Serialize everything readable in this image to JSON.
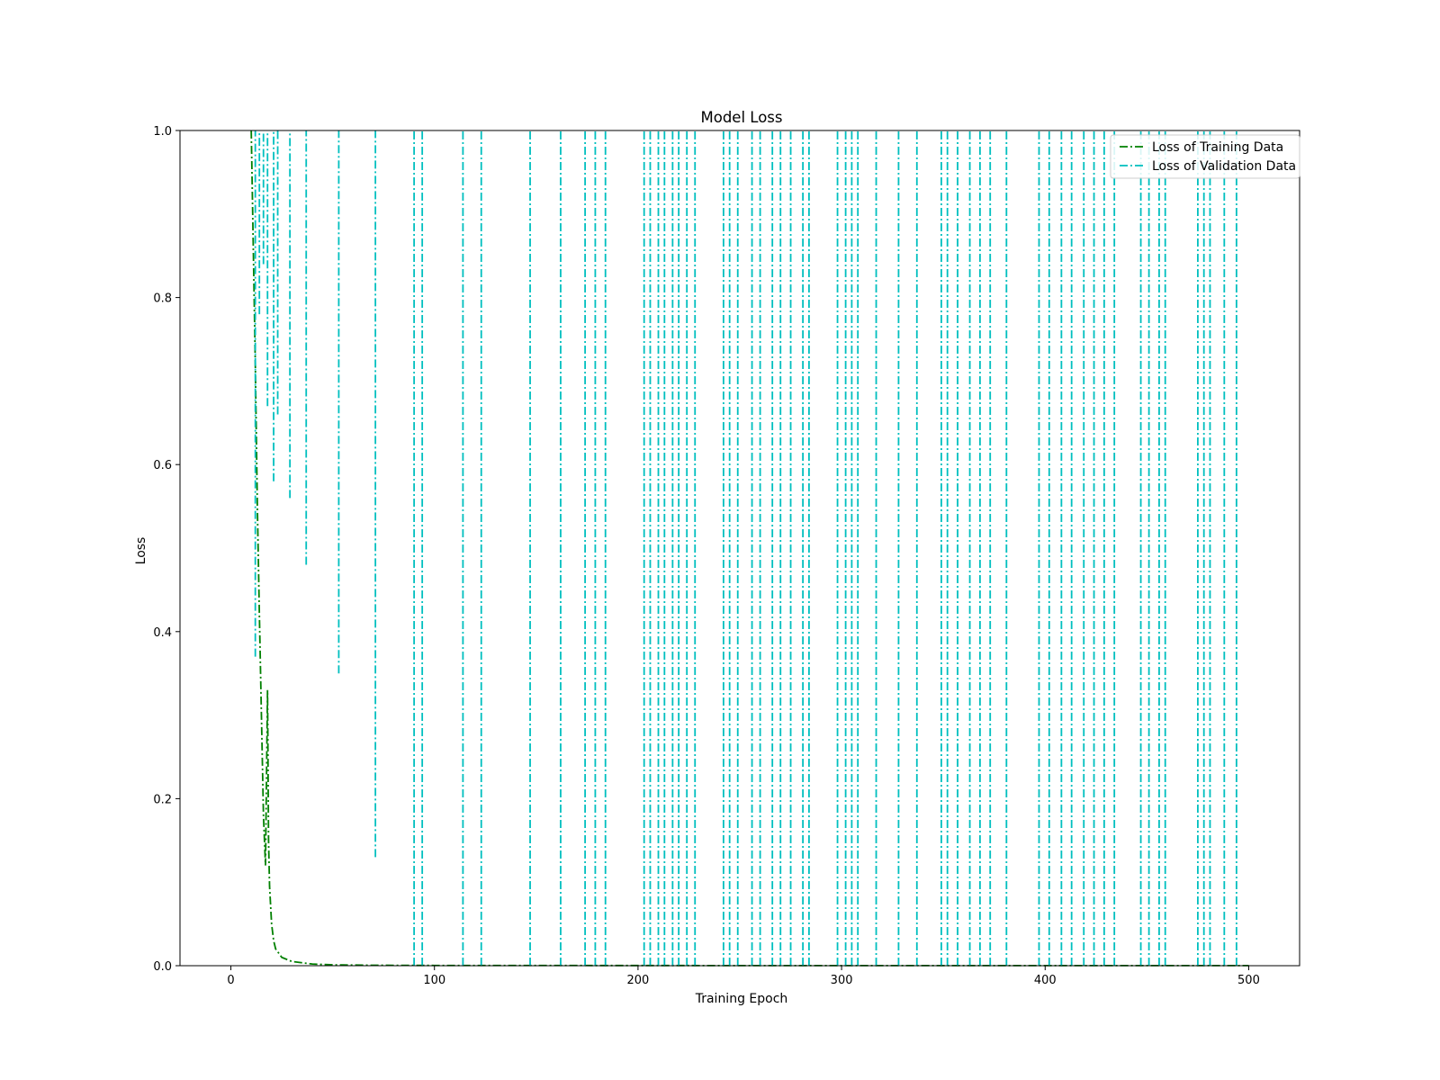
{
  "chart_data": {
    "type": "line",
    "title": "Model Loss",
    "xlabel": "Training Epoch",
    "ylabel": "Loss",
    "xlim": [
      -25,
      525
    ],
    "ylim": [
      0.0,
      1.0
    ],
    "x_ticks": [
      0,
      100,
      200,
      300,
      400,
      500
    ],
    "x_tick_labels": [
      "0",
      "100",
      "200",
      "300",
      "400",
      "500"
    ],
    "y_ticks": [
      0.0,
      0.2,
      0.4,
      0.6,
      0.8,
      1.0
    ],
    "y_tick_labels": [
      "0.0",
      "0.2",
      "0.4",
      "0.6",
      "0.8",
      "1.0"
    ],
    "grid": false,
    "legend_position": "top-right",
    "series": [
      {
        "name": "Loss of Training Data",
        "color": "#008000",
        "line_style": "dash-dot",
        "points": [
          [
            10,
            1.0
          ],
          [
            12,
            0.72
          ],
          [
            13,
            0.55
          ],
          [
            14,
            0.42
          ],
          [
            15,
            0.3
          ],
          [
            16,
            0.18
          ],
          [
            17,
            0.12
          ],
          [
            18,
            0.33
          ],
          [
            18.5,
            0.15
          ],
          [
            19,
            0.095
          ],
          [
            20,
            0.05
          ],
          [
            21,
            0.03
          ],
          [
            22,
            0.02
          ],
          [
            25,
            0.01
          ],
          [
            30,
            0.005
          ],
          [
            40,
            0.002
          ],
          [
            50,
            0.001
          ],
          [
            70,
            0.0005
          ],
          [
            100,
            0.0003
          ],
          [
            200,
            0.0002
          ],
          [
            300,
            0.0001
          ],
          [
            400,
            0.0001
          ],
          [
            500,
            0.0001
          ]
        ]
      },
      {
        "name": "Loss of Validation Data",
        "color": "#00bfbf",
        "line_style": "dash-dot",
        "spikes": [
          {
            "x": 12,
            "min": 0.37
          },
          {
            "x": 14,
            "min": 0.78
          },
          {
            "x": 16,
            "min": 0.84
          },
          {
            "x": 18,
            "min": 0.67
          },
          {
            "x": 21,
            "min": 0.58
          },
          {
            "x": 23,
            "min": 0.66
          },
          {
            "x": 29,
            "min": 0.56
          },
          {
            "x": 37,
            "min": 0.48
          },
          {
            "x": 53,
            "min": 0.35
          },
          {
            "x": 71,
            "min": 0.13
          },
          {
            "x": 90,
            "min": 0
          },
          {
            "x": 94,
            "min": 0
          },
          {
            "x": 114,
            "min": 0
          },
          {
            "x": 123,
            "min": 0
          },
          {
            "x": 147,
            "min": 0
          },
          {
            "x": 162,
            "min": 0
          },
          {
            "x": 174,
            "min": 0
          },
          {
            "x": 179,
            "min": 0
          },
          {
            "x": 184,
            "min": 0
          },
          {
            "x": 203,
            "min": 0
          },
          {
            "x": 206,
            "min": 0
          },
          {
            "x": 210,
            "min": 0
          },
          {
            "x": 213,
            "min": 0
          },
          {
            "x": 217,
            "min": 0
          },
          {
            "x": 220,
            "min": 0
          },
          {
            "x": 224,
            "min": 0
          },
          {
            "x": 228,
            "min": 0
          },
          {
            "x": 242,
            "min": 0
          },
          {
            "x": 245,
            "min": 0
          },
          {
            "x": 249,
            "min": 0
          },
          {
            "x": 256,
            "min": 0
          },
          {
            "x": 260,
            "min": 0
          },
          {
            "x": 266,
            "min": 0
          },
          {
            "x": 270,
            "min": 0
          },
          {
            "x": 275,
            "min": 0
          },
          {
            "x": 281,
            "min": 0
          },
          {
            "x": 284,
            "min": 0
          },
          {
            "x": 298,
            "min": 0
          },
          {
            "x": 302,
            "min": 0
          },
          {
            "x": 305,
            "min": 0
          },
          {
            "x": 308,
            "min": 0
          },
          {
            "x": 317,
            "min": 0
          },
          {
            "x": 328,
            "min": 0
          },
          {
            "x": 337,
            "min": 0
          },
          {
            "x": 349,
            "min": 0
          },
          {
            "x": 352,
            "min": 0
          },
          {
            "x": 357,
            "min": 0
          },
          {
            "x": 363,
            "min": 0
          },
          {
            "x": 368,
            "min": 0
          },
          {
            "x": 373,
            "min": 0
          },
          {
            "x": 381,
            "min": 0
          },
          {
            "x": 397,
            "min": 0
          },
          {
            "x": 402,
            "min": 0
          },
          {
            "x": 408,
            "min": 0
          },
          {
            "x": 413,
            "min": 0
          },
          {
            "x": 419,
            "min": 0
          },
          {
            "x": 424,
            "min": 0
          },
          {
            "x": 429,
            "min": 0
          },
          {
            "x": 434,
            "min": 0
          },
          {
            "x": 447,
            "min": 0
          },
          {
            "x": 451,
            "min": 0
          },
          {
            "x": 456,
            "min": 0
          },
          {
            "x": 459,
            "min": 0
          },
          {
            "x": 475,
            "min": 0
          },
          {
            "x": 478,
            "min": 0
          },
          {
            "x": 481,
            "min": 0
          },
          {
            "x": 488,
            "min": 0
          },
          {
            "x": 494,
            "min": 0
          }
        ]
      }
    ]
  }
}
